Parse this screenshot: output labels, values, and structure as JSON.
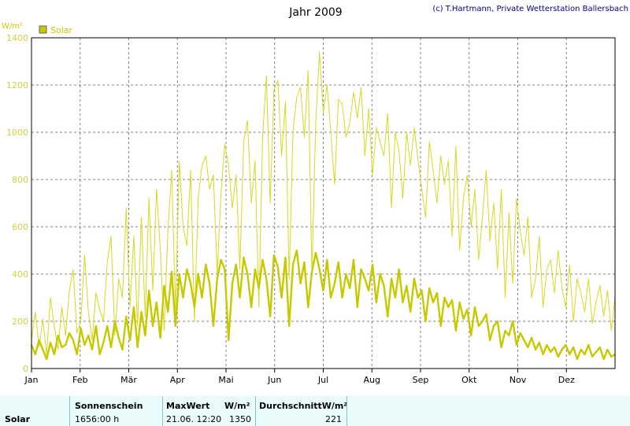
{
  "header": {
    "title": "Jahr 2009",
    "copyright": "(c) T.Hartmann, Private Wetterstation Ballersbach",
    "unit_label": "W/m²"
  },
  "legend": {
    "label": "Solar",
    "color": "#c8c800"
  },
  "colors": {
    "line": "#d8d820",
    "line_strong": "#c8c800",
    "grid": "#808080"
  },
  "chart_data": {
    "type": "line",
    "title": "Jahr 2009",
    "ylabel": "W/m²",
    "ylim": [
      0,
      1400
    ],
    "yticks": [
      0,
      200,
      400,
      600,
      800,
      1000,
      1200,
      1400
    ],
    "xticks": [
      "Jan",
      "Feb",
      "Mär",
      "Apr",
      "Mai",
      "Jun",
      "Jul",
      "Aug",
      "Sep",
      "Okt",
      "Nov",
      "Dez"
    ],
    "grid": true,
    "legend_position": "top-left",
    "series": [
      {
        "name": "Solar",
        "stat": "max",
        "values": [
          120,
          240,
          90,
          210,
          60,
          300,
          180,
          80,
          260,
          140,
          330,
          420,
          150,
          200,
          480,
          240,
          120,
          320,
          250,
          200,
          450,
          560,
          140,
          380,
          300,
          680,
          260,
          560,
          180,
          640,
          220,
          720,
          330,
          760,
          500,
          160,
          580,
          840,
          250,
          880,
          600,
          520,
          840,
          200,
          720,
          860,
          900,
          760,
          820,
          400,
          740,
          950,
          860,
          680,
          820,
          420,
          960,
          1050,
          700,
          880,
          260,
          980,
          1240,
          700,
          1180,
          1220,
          900,
          1130,
          380,
          1000,
          1150,
          1190,
          980,
          1260,
          400,
          1040,
          1340,
          1080,
          1200,
          1000,
          780,
          1140,
          1120,
          980,
          1040,
          1170,
          1060,
          1190,
          900,
          1100,
          820,
          1020,
          960,
          900,
          1080,
          680,
          1000,
          920,
          720,
          1000,
          860,
          1020,
          880,
          760,
          640,
          960,
          840,
          700,
          900,
          780,
          880,
          560,
          940,
          500,
          720,
          820,
          600,
          760,
          460,
          640,
          840,
          540,
          700,
          420,
          760,
          300,
          660,
          360,
          720,
          580,
          480,
          640,
          300,
          380,
          560,
          260,
          420,
          460,
          320,
          500,
          340,
          260,
          440,
          200,
          380,
          320,
          240,
          380,
          190,
          280,
          350,
          220,
          330,
          160,
          300
        ]
      },
      {
        "name": "Solar",
        "stat": "mean",
        "values": [
          100,
          60,
          120,
          80,
          40,
          110,
          60,
          140,
          90,
          100,
          150,
          120,
          60,
          170,
          100,
          140,
          80,
          180,
          60,
          110,
          180,
          90,
          200,
          130,
          80,
          220,
          120,
          260,
          90,
          240,
          140,
          330,
          180,
          280,
          130,
          350,
          240,
          410,
          180,
          400,
          300,
          420,
          360,
          260,
          400,
          300,
          440,
          360,
          180,
          380,
          460,
          420,
          120,
          360,
          440,
          300,
          470,
          400,
          260,
          420,
          340,
          460,
          380,
          220,
          480,
          430,
          300,
          470,
          180,
          440,
          500,
          360,
          450,
          260,
          410,
          490,
          420,
          330,
          460,
          300,
          360,
          450,
          300,
          400,
          340,
          460,
          260,
          420,
          380,
          330,
          440,
          280,
          400,
          350,
          220,
          380,
          300,
          420,
          280,
          350,
          240,
          380,
          300,
          330,
          200,
          340,
          280,
          320,
          180,
          300,
          260,
          290,
          160,
          280,
          210,
          250,
          140,
          260,
          180,
          200,
          230,
          120,
          180,
          200,
          90,
          160,
          140,
          200,
          100,
          150,
          120,
          90,
          130,
          80,
          110,
          60,
          100,
          70,
          90,
          50,
          80,
          100,
          60,
          90,
          40,
          80,
          60,
          100,
          50,
          70,
          90,
          40,
          80,
          50,
          60
        ]
      }
    ]
  },
  "stats": {
    "row_label": "Solar",
    "sunshine_header": "Sonnenschein",
    "sunshine_value": "1656:00 h",
    "max_header": "MaxWert",
    "max_unit": "W/m²",
    "max_datetime": "21.06. 12:20",
    "max_value": "1350",
    "avg_header": "DurchschnittW/m²",
    "avg_value": "221"
  }
}
